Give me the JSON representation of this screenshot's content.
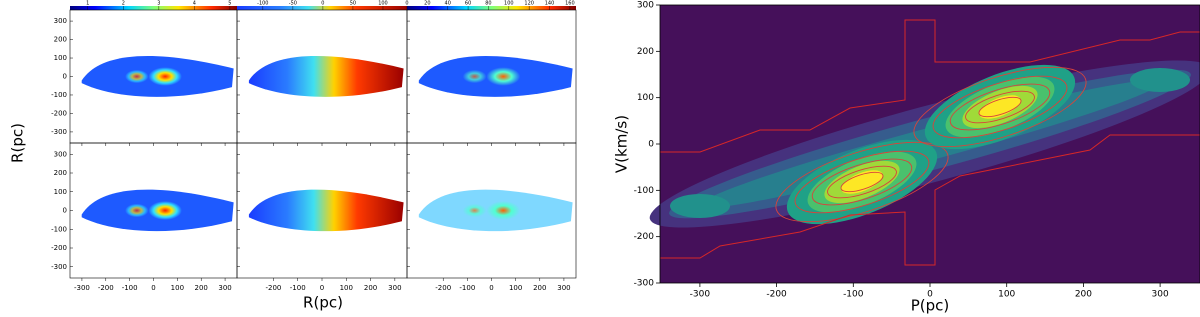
{
  "chart_data": [
    {
      "type": "image-grid",
      "x_label": "R(pc)",
      "y_label": "R(pc)",
      "ylim": [
        -360,
        360
      ],
      "yticks": [
        -300,
        -200,
        -100,
        0,
        100,
        200,
        300
      ],
      "columns": [
        {
          "xlim": [
            -350,
            350
          ],
          "xticks": [
            -300,
            -200,
            -100,
            0,
            100,
            200,
            300
          ],
          "colorbar": {
            "lim": [
              0.5,
              5.2
            ],
            "ticks": [
              1,
              2,
              3,
              4,
              5
            ]
          }
        },
        {
          "xlim": [
            -350,
            350
          ],
          "xticks": [
            -200,
            -100,
            0,
            100,
            200,
            300
          ],
          "colorbar": {
            "lim": [
              -143,
              140
            ],
            "ticks": [
              -100,
              -50,
              0,
              50,
              100
            ]
          }
        },
        {
          "xlim": [
            -350,
            350
          ],
          "xticks": [
            -200,
            -100,
            0,
            100,
            200,
            300
          ],
          "colorbar": {
            "lim": [
              0,
              166
            ],
            "ticks": [
              0,
              20,
              40,
              60,
              80,
              100,
              120,
              140,
              160
            ]
          }
        }
      ]
    },
    {
      "type": "contour",
      "x_label": "P(pc)",
      "y_label": "V(km/s)",
      "xlim": [
        -352,
        352
      ],
      "ylim": [
        -300,
        300
      ],
      "xticks": [
        -300,
        -200,
        -100,
        0,
        100,
        200,
        300
      ],
      "yticks": [
        -300,
        -200,
        -100,
        0,
        100,
        200,
        300
      ]
    }
  ]
}
